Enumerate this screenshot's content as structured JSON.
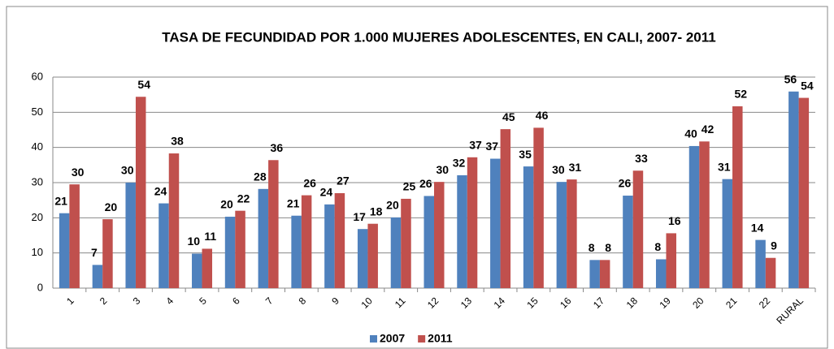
{
  "chart_data": {
    "type": "bar",
    "title": "TASA DE FECUNDIDAD  POR 1.000 MUJERES ADOLESCENTES, EN CALI, 2007- 2011",
    "categories": [
      "1",
      "2",
      "3",
      "4",
      "5",
      "6",
      "7",
      "8",
      "9",
      "10",
      "11",
      "12",
      "13",
      "14",
      "15",
      "16",
      "17",
      "18",
      "19",
      "20",
      "21",
      "22",
      "RURAL"
    ],
    "series": [
      {
        "name": "2007",
        "color": "#4f81bd",
        "values": [
          21.3,
          6.6,
          30.0,
          24.1,
          9.8,
          20.3,
          28.2,
          20.6,
          23.8,
          16.8,
          20.1,
          26.2,
          32.1,
          36.8,
          34.6,
          30.2,
          8.0,
          26.3,
          8.2,
          40.4,
          31.0,
          13.7,
          55.9
        ],
        "value_labels": [
          "21",
          "7",
          "30",
          "24",
          "10",
          "20",
          "28",
          "21",
          "24",
          "17",
          "20",
          "26",
          "32",
          "37",
          "35",
          "30",
          "8",
          "26",
          "8",
          "40",
          "31",
          "14",
          "56"
        ]
      },
      {
        "name": "2011",
        "color": "#c0504d",
        "values": [
          29.5,
          19.6,
          54.4,
          38.3,
          11.2,
          22.0,
          36.4,
          26.4,
          27.0,
          18.3,
          25.4,
          30.2,
          37.2,
          45.2,
          45.6,
          30.9,
          8.0,
          33.4,
          15.6,
          41.7,
          51.7,
          8.6,
          54.1
        ],
        "value_labels": [
          "30",
          "20",
          "54",
          "38",
          "11",
          "22",
          "36",
          "26",
          "27",
          "18",
          "25",
          "30",
          "37",
          "45",
          "46",
          "31",
          "8",
          "33",
          "16",
          "42",
          "52",
          "9",
          "54"
        ]
      }
    ],
    "ylim": [
      0,
      60
    ],
    "yticks": [
      0,
      10,
      20,
      30,
      40,
      50,
      60
    ],
    "grid": true,
    "legend": "bottom"
  }
}
